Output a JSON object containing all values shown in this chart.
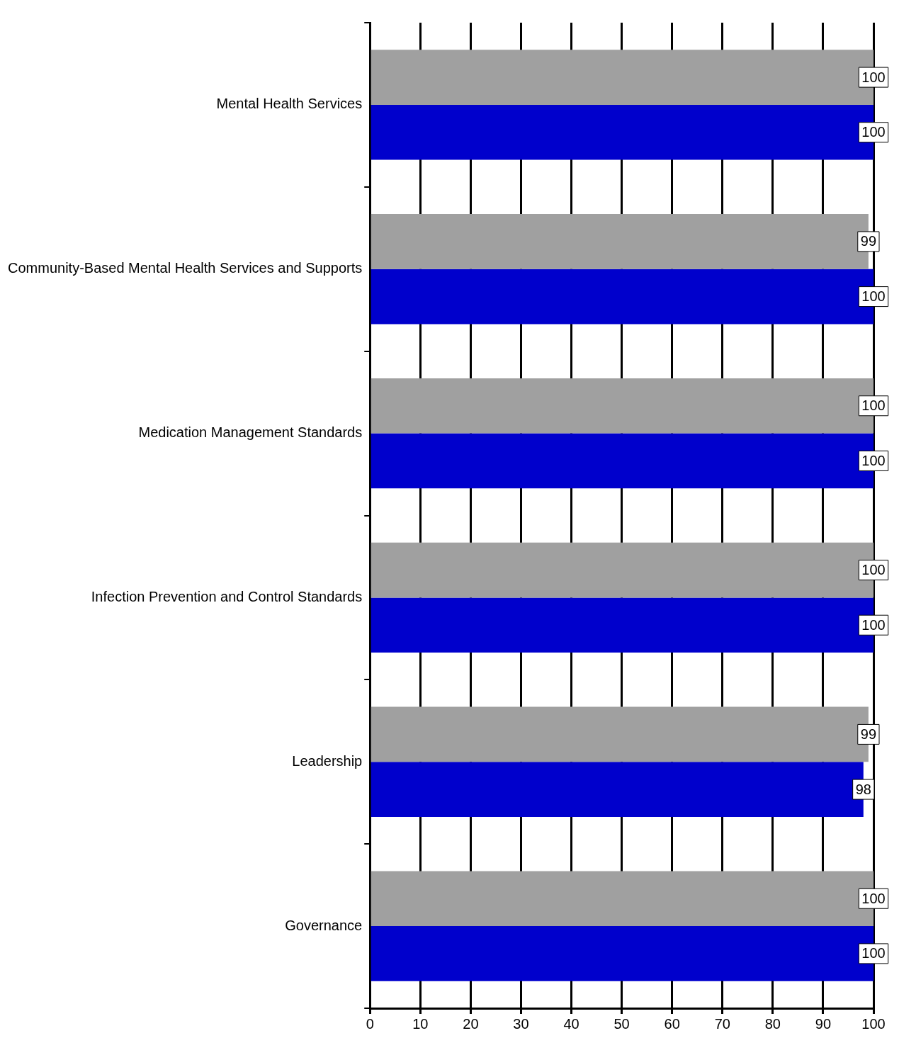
{
  "chart_data": {
    "type": "bar",
    "orientation": "horizontal",
    "categories": [
      "Mental Health Services",
      "Community-Based Mental Health Services and Supports",
      "Medication Management Standards",
      "Infection Prevention and Control Standards",
      "Leadership",
      "Governance"
    ],
    "series": [
      {
        "color": "#a0a0a0",
        "values": [
          100,
          99,
          100,
          100,
          99,
          100
        ]
      },
      {
        "color": "#0000cc",
        "values": [
          100,
          100,
          100,
          100,
          98,
          100
        ]
      }
    ],
    "xlim": [
      0,
      100
    ],
    "xticks": [
      0,
      10,
      20,
      30,
      40,
      50,
      60,
      70,
      80,
      90,
      100
    ],
    "grid": "x",
    "legend": false,
    "data_labels": true
  }
}
